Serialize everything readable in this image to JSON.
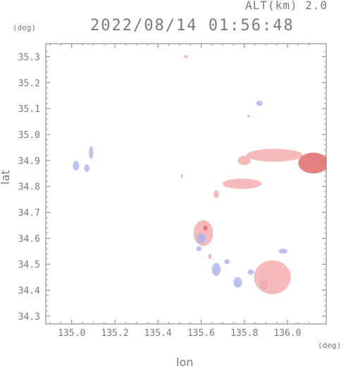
{
  "header": {
    "altitude_label": "ALT(km) 2.0",
    "timestamp": "2022/08/14 01:56:48"
  },
  "axes": {
    "y_unit": "(deg)",
    "x_unit": "(deg)",
    "xlabel": "lon",
    "ylabel": "lat"
  },
  "chart_data": {
    "type": "scatter",
    "xlim": [
      134.88,
      136.18
    ],
    "ylim": [
      34.27,
      35.35
    ],
    "x_ticks": [
      {
        "value": 135.0,
        "label": "135.0"
      },
      {
        "value": 135.2,
        "label": "135.2"
      },
      {
        "value": 135.4,
        "label": "135.4"
      },
      {
        "value": 135.6,
        "label": "135.6"
      },
      {
        "value": 135.8,
        "label": "135.8"
      },
      {
        "value": 136.0,
        "label": "136.0"
      }
    ],
    "y_ticks": [
      {
        "value": 34.3,
        "label": "34.3"
      },
      {
        "value": 34.4,
        "label": "34.4"
      },
      {
        "value": 34.5,
        "label": "34.5"
      },
      {
        "value": 34.6,
        "label": "34.6"
      },
      {
        "value": 34.7,
        "label": "34.7"
      },
      {
        "value": 34.8,
        "label": "34.8"
      },
      {
        "value": 34.9,
        "label": "34.9"
      },
      {
        "value": 35.0,
        "label": "35.0"
      },
      {
        "value": 35.1,
        "label": "35.1"
      },
      {
        "value": 35.2,
        "label": "35.2"
      },
      {
        "value": 35.3,
        "label": "35.3"
      }
    ],
    "grid": false,
    "colors": {
      "positive": "#f4a9a9",
      "negative": "#aab2ee",
      "strong_positive": "#e06a6a",
      "strong_negative": "#5a63d6"
    },
    "echo_regions": [
      {
        "lon": 135.02,
        "lat": 34.88,
        "rlon": 0.015,
        "rlat": 0.018,
        "sign": "negative"
      },
      {
        "lon": 135.07,
        "lat": 34.87,
        "rlon": 0.012,
        "rlat": 0.015,
        "sign": "negative"
      },
      {
        "lon": 135.09,
        "lat": 34.93,
        "rlon": 0.01,
        "rlat": 0.025,
        "sign": "negative"
      },
      {
        "lon": 135.53,
        "lat": 35.3,
        "rlon": 0.01,
        "rlat": 0.006,
        "sign": "positive"
      },
      {
        "lon": 135.87,
        "lat": 35.12,
        "rlon": 0.015,
        "rlat": 0.01,
        "sign": "negative"
      },
      {
        "lon": 135.82,
        "lat": 35.07,
        "rlon": 0.006,
        "rlat": 0.006,
        "sign": "positive"
      },
      {
        "lon": 135.94,
        "lat": 34.92,
        "rlon": 0.13,
        "rlat": 0.025,
        "sign": "positive"
      },
      {
        "lon": 135.8,
        "lat": 34.9,
        "rlon": 0.03,
        "rlat": 0.018,
        "sign": "positive"
      },
      {
        "lon": 136.12,
        "lat": 34.89,
        "rlon": 0.07,
        "rlat": 0.04,
        "sign": "strong_positive"
      },
      {
        "lon": 135.79,
        "lat": 34.81,
        "rlon": 0.09,
        "rlat": 0.02,
        "sign": "positive"
      },
      {
        "lon": 135.67,
        "lat": 34.77,
        "rlon": 0.012,
        "rlat": 0.015,
        "sign": "positive"
      },
      {
        "lon": 135.61,
        "lat": 34.62,
        "rlon": 0.045,
        "rlat": 0.05,
        "sign": "positive"
      },
      {
        "lon": 135.6,
        "lat": 34.6,
        "rlon": 0.02,
        "rlat": 0.02,
        "sign": "negative"
      },
      {
        "lon": 135.62,
        "lat": 34.64,
        "rlon": 0.01,
        "rlat": 0.01,
        "sign": "strong_positive"
      },
      {
        "lon": 135.59,
        "lat": 34.56,
        "rlon": 0.012,
        "rlat": 0.01,
        "sign": "negative"
      },
      {
        "lon": 135.64,
        "lat": 34.53,
        "rlon": 0.008,
        "rlat": 0.01,
        "sign": "positive"
      },
      {
        "lon": 135.67,
        "lat": 34.48,
        "rlon": 0.02,
        "rlat": 0.025,
        "sign": "negative"
      },
      {
        "lon": 135.72,
        "lat": 34.51,
        "rlon": 0.012,
        "rlat": 0.01,
        "sign": "negative"
      },
      {
        "lon": 135.77,
        "lat": 34.43,
        "rlon": 0.02,
        "rlat": 0.02,
        "sign": "negative"
      },
      {
        "lon": 135.83,
        "lat": 34.47,
        "rlon": 0.015,
        "rlat": 0.01,
        "sign": "negative"
      },
      {
        "lon": 135.93,
        "lat": 34.45,
        "rlon": 0.085,
        "rlat": 0.065,
        "sign": "positive"
      },
      {
        "lon": 135.98,
        "lat": 34.55,
        "rlon": 0.02,
        "rlat": 0.01,
        "sign": "negative"
      },
      {
        "lon": 135.89,
        "lat": 34.42,
        "rlon": 0.02,
        "rlat": 0.02,
        "sign": "positive"
      },
      {
        "lon": 135.51,
        "lat": 34.84,
        "rlon": 0.004,
        "rlat": 0.008,
        "sign": "negative"
      }
    ]
  }
}
